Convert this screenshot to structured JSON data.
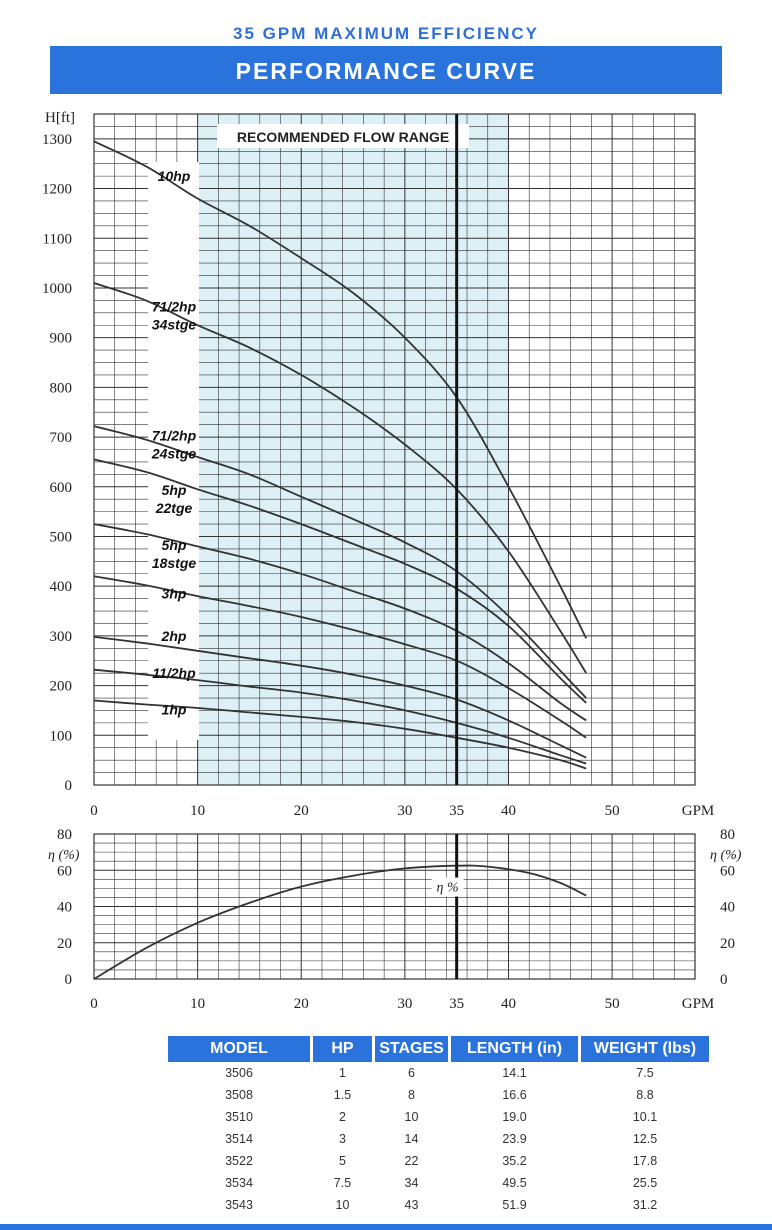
{
  "header": {
    "subtitle": "35 GPM MAXIMUM EFFICIENCY",
    "title": "PERFORMANCE CURVE"
  },
  "chart_data": [
    {
      "type": "line",
      "ylabel": "H[ft]",
      "xlabel": "GPM",
      "xlim": [
        0,
        58
      ],
      "ylim": [
        0,
        1300
      ],
      "x_ticks": [
        "0",
        "10",
        "20",
        "30",
        "35",
        "40",
        "50"
      ],
      "x_tick_values": [
        0,
        10,
        20,
        30,
        35,
        40,
        50
      ],
      "y_ticks": [
        "0",
        "100",
        "200",
        "300",
        "400",
        "500",
        "600",
        "700",
        "800",
        "900",
        "1000",
        "1100",
        "1200",
        "1300"
      ],
      "y_tick_values": [
        0,
        100,
        200,
        300,
        400,
        500,
        600,
        700,
        800,
        900,
        1000,
        1100,
        1200,
        1300
      ],
      "shaded_range": {
        "label": "RECOMMENDED FLOW RANGE",
        "x": [
          10,
          40
        ]
      },
      "marker_line_x": 35,
      "series": [
        {
          "name": "10hp",
          "label_lines": [
            "10hp"
          ],
          "label_y": 1225,
          "x": [
            0,
            5,
            10,
            15,
            20,
            25,
            30,
            35,
            40,
            45,
            47.5
          ],
          "y": [
            1295,
            1245,
            1180,
            1125,
            1060,
            990,
            900,
            780,
            600,
            400,
            295
          ]
        },
        {
          "name": "71/2hp 34stge",
          "label_lines": [
            "71/2hp",
            "34stge"
          ],
          "label_y": 945,
          "x": [
            0,
            5,
            10,
            15,
            20,
            25,
            30,
            35,
            40,
            45,
            47.5
          ],
          "y": [
            1010,
            975,
            925,
            880,
            825,
            760,
            685,
            595,
            470,
            310,
            225
          ]
        },
        {
          "name": "71/2hp 24stge",
          "label_lines": [
            "71/2hp",
            "24stge"
          ],
          "label_y": 685,
          "x": [
            0,
            5,
            10,
            15,
            20,
            25,
            30,
            35,
            40,
            45,
            47.5
          ],
          "y": [
            722,
            695,
            660,
            625,
            580,
            535,
            488,
            430,
            340,
            230,
            175
          ]
        },
        {
          "name": "5hp 22tge",
          "label_lines": [
            "5hp",
            "22tge"
          ],
          "label_y": 575,
          "x": [
            0,
            5,
            10,
            15,
            20,
            25,
            30,
            35,
            40,
            45,
            47.5
          ],
          "y": [
            655,
            630,
            595,
            562,
            525,
            485,
            445,
            395,
            320,
            215,
            165
          ]
        },
        {
          "name": "5hp 18stge",
          "label_lines": [
            "5hp",
            "18stge"
          ],
          "label_y": 465,
          "x": [
            0,
            5,
            10,
            15,
            20,
            25,
            30,
            35,
            40,
            45,
            47.5
          ],
          "y": [
            525,
            505,
            480,
            455,
            425,
            390,
            355,
            310,
            245,
            165,
            130
          ]
        },
        {
          "name": "3hp",
          "label_lines": [
            "3hp"
          ],
          "label_y": 385,
          "x": [
            0,
            5,
            10,
            15,
            20,
            25,
            30,
            35,
            40,
            45,
            47.5
          ],
          "y": [
            420,
            402,
            380,
            360,
            338,
            312,
            283,
            250,
            195,
            130,
            95
          ]
        },
        {
          "name": "2hp",
          "label_lines": [
            "2hp"
          ],
          "label_y": 300,
          "x": [
            0,
            5,
            10,
            15,
            20,
            25,
            30,
            35,
            40,
            45,
            47.5
          ],
          "y": [
            298,
            285,
            270,
            255,
            240,
            222,
            200,
            172,
            130,
            80,
            55
          ]
        },
        {
          "name": "11/2hp",
          "label_lines": [
            "11/2hp"
          ],
          "label_y": 225,
          "x": [
            0,
            5,
            10,
            15,
            20,
            25,
            30,
            35,
            40,
            45,
            47.5
          ],
          "y": [
            232,
            222,
            211,
            198,
            186,
            170,
            150,
            125,
            95,
            60,
            43
          ]
        },
        {
          "name": "1hp",
          "label_lines": [
            "1hp"
          ],
          "label_y": 152,
          "x": [
            0,
            5,
            10,
            15,
            20,
            25,
            30,
            35,
            40,
            45,
            47.5
          ],
          "y": [
            170,
            162,
            155,
            146,
            137,
            127,
            113,
            95,
            75,
            50,
            33
          ]
        }
      ]
    },
    {
      "type": "line",
      "ylabel": "η (%)",
      "xlabel": "GPM",
      "xlim": [
        0,
        58
      ],
      "ylim": [
        0,
        80
      ],
      "x_ticks": [
        "0",
        "10",
        "20",
        "30",
        "35",
        "40",
        "50"
      ],
      "x_tick_values": [
        0,
        10,
        20,
        30,
        35,
        40,
        50
      ],
      "y_ticks": [
        "0",
        "20",
        "40",
        "60",
        "80"
      ],
      "y_tick_values": [
        0,
        20,
        40,
        60,
        80
      ],
      "marker_line_x": 35,
      "series": [
        {
          "name": "η %",
          "label_x": 32,
          "label_y": 51,
          "x": [
            0,
            5,
            10,
            15,
            20,
            25,
            30,
            35,
            38,
            42,
            45,
            47.5
          ],
          "y": [
            0,
            17,
            31,
            42,
            51,
            57,
            61,
            62.5,
            62,
            58.5,
            53,
            46
          ]
        }
      ]
    }
  ],
  "table": {
    "headers": [
      "MODEL",
      "HP",
      "STAGES",
      "LENGTH (in)",
      "WEIGHT (lbs)"
    ],
    "rows": [
      [
        "3506",
        "1",
        "6",
        "14.1",
        "7.5"
      ],
      [
        "3508",
        "1.5",
        "8",
        "16.6",
        "8.8"
      ],
      [
        "3510",
        "2",
        "10",
        "19.0",
        "10.1"
      ],
      [
        "3514",
        "3",
        "14",
        "23.9",
        "12.5"
      ],
      [
        "3522",
        "5",
        "22",
        "35.2",
        "17.8"
      ],
      [
        "3534",
        "7.5",
        "34",
        "49.5",
        "25.5"
      ],
      [
        "3543",
        "10",
        "43",
        "51.9",
        "31.2"
      ]
    ]
  },
  "colors": {
    "accent": "#2a73dc",
    "subtitle": "#2f6fd6",
    "shade": "#dcf0f6",
    "grid": "#333333",
    "curve": "#333333"
  }
}
